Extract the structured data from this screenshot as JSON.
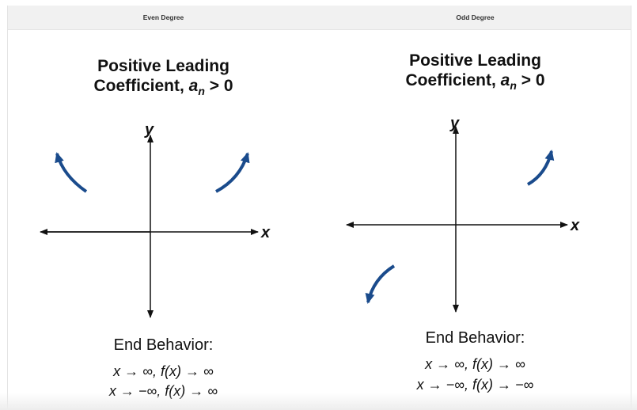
{
  "headers": {
    "even": "Even Degree",
    "odd": "Odd Degree"
  },
  "even_panel": {
    "title_line1": "Positive Leading",
    "title_line2_prefix": "Coefficient, ",
    "title_var": "a",
    "title_sub": "n",
    "title_suffix": " > 0",
    "x_label": "x",
    "y_label": "y",
    "end_behavior_label": "End Behavior:",
    "behavior_1": "x → ∞, f(x) → ∞",
    "behavior_2": "x → −∞, f(x) → ∞",
    "arrow_color": "#1a4b8c"
  },
  "odd_panel": {
    "title_line1": "Positive Leading",
    "title_line2_prefix": "Coefficient, ",
    "title_var": "a",
    "title_sub": "n",
    "title_suffix": " > 0",
    "x_label": "x",
    "y_label": "y",
    "end_behavior_label": "End Behavior:",
    "behavior_1": "x → ∞, f(x) → ∞",
    "behavior_2": "x → −∞, f(x) → −∞",
    "arrow_color": "#1a4b8c"
  }
}
